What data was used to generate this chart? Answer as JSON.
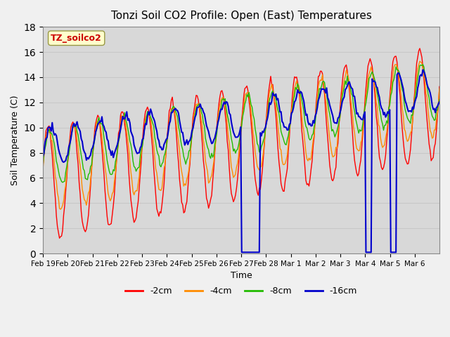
{
  "title": "Tonzi Soil CO2 Profile: Open (East) Temperatures",
  "xlabel": "Time",
  "ylabel": "Soil Temperature (C)",
  "ylim": [
    0,
    18
  ],
  "fig_bg_color": "#f0f0f0",
  "plot_bg_color": "#d8d8d8",
  "legend_label": "TZ_soilco2",
  "series_labels": [
    "-2cm",
    "-4cm",
    "-8cm",
    "-16cm"
  ],
  "series_colors": [
    "#ff0000",
    "#ff8c00",
    "#22bb00",
    "#0000cc"
  ],
  "x_tick_labels": [
    "Feb 19",
    "Feb 20",
    "Feb 21",
    "Feb 22",
    "Feb 23",
    "Feb 24",
    "Feb 25",
    "Feb 26",
    "Feb 27",
    "Feb 28",
    "Mar 1",
    "Mar 2",
    "Mar 3",
    "Mar 4",
    "Mar 5",
    "Mar 6"
  ],
  "n_days": 16,
  "pts_per_day": 24,
  "random_seed": 42,
  "base_starts": [
    5.5,
    6.5,
    7.5,
    8.5
  ],
  "base_ends": [
    12.0,
    12.5,
    13.0,
    13.0
  ],
  "amplitudes": [
    4.5,
    3.2,
    2.2,
    1.5
  ],
  "phases": [
    0.3,
    0.1,
    -0.2,
    -0.5
  ],
  "noise_scale": 0.15,
  "clip_mins": [
    1.0,
    2.0,
    3.0,
    0.0
  ],
  "clip_maxs": [
    17.0,
    16.5,
    16.0,
    15.0
  ],
  "grid_color": "#c8c8c8",
  "spine_color": "#888888"
}
